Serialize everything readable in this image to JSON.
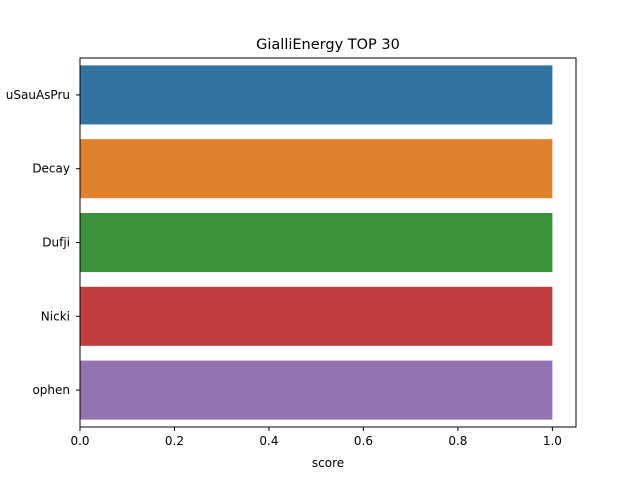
{
  "chart_data": {
    "type": "bar",
    "orientation": "horizontal",
    "title": "GialliEnergy TOP 30",
    "xlabel": "score",
    "ylabel": "",
    "categories": [
      "uSauAsPru",
      "Decay",
      "Dufji",
      "Nicki",
      "ophen"
    ],
    "values": [
      1.0,
      1.0,
      1.0,
      1.0,
      1.0
    ],
    "colors": [
      "#3274a1",
      "#e1812c",
      "#3a923a",
      "#c03d3e",
      "#9372b2"
    ],
    "xlim": [
      0,
      1.05
    ],
    "xticks": [
      0.0,
      0.2,
      0.4,
      0.6,
      0.8,
      1.0
    ],
    "xtick_labels": [
      "0.0",
      "0.2",
      "0.4",
      "0.6",
      "0.8",
      "1.0"
    ],
    "grid": false,
    "legend": "none"
  }
}
